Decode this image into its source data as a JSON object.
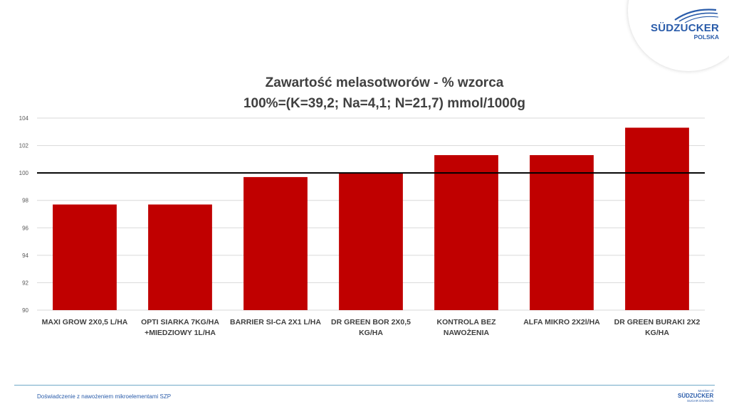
{
  "logo": {
    "name": "SÜDZUCKER",
    "sub": "POLSKA"
  },
  "footer": {
    "text": "Doświadczenie z nawożeniem mikroelementami SZP",
    "small_logo_top": "Member of",
    "small_logo_name": "SÜDZUCKER",
    "small_logo_bottom": "SUGAR DIVISION"
  },
  "colors": {
    "bar": "#c00000",
    "reference_line": "#000000",
    "grid": "#d9d9d9",
    "brand": "#2a5caa"
  },
  "chart_data": {
    "type": "bar",
    "title": "Zawartość melasotworów - % wzorca",
    "subtitle": "100%=(K=39,2; Na=4,1; N=21,7) mmol/1000g",
    "categories": [
      [
        "MAXI GROW 2X0,5 L/HA"
      ],
      [
        "OPTI SIARKA 7KG/HA",
        "+MIEDZIOWY 1L/HA"
      ],
      [
        "BARRIER SI-CA 2X1 L/HA"
      ],
      [
        "DR GREEN BOR 2X0,5",
        "KG/HA"
      ],
      [
        "KONTROLA BEZ",
        "NAWOŻENIA"
      ],
      [
        "ALFA MIKRO 2X2l/HA"
      ],
      [
        "DR GREEN BURAKI 2X2",
        "KG/HA"
      ]
    ],
    "values": [
      97.7,
      97.7,
      99.7,
      100.0,
      101.3,
      101.3,
      103.3
    ],
    "ylim": [
      90,
      104
    ],
    "yticks": [
      "90",
      "92",
      "94",
      "96",
      "98",
      "100",
      "102",
      "104"
    ],
    "reference_value": 100,
    "grid": true,
    "legend": "none"
  }
}
